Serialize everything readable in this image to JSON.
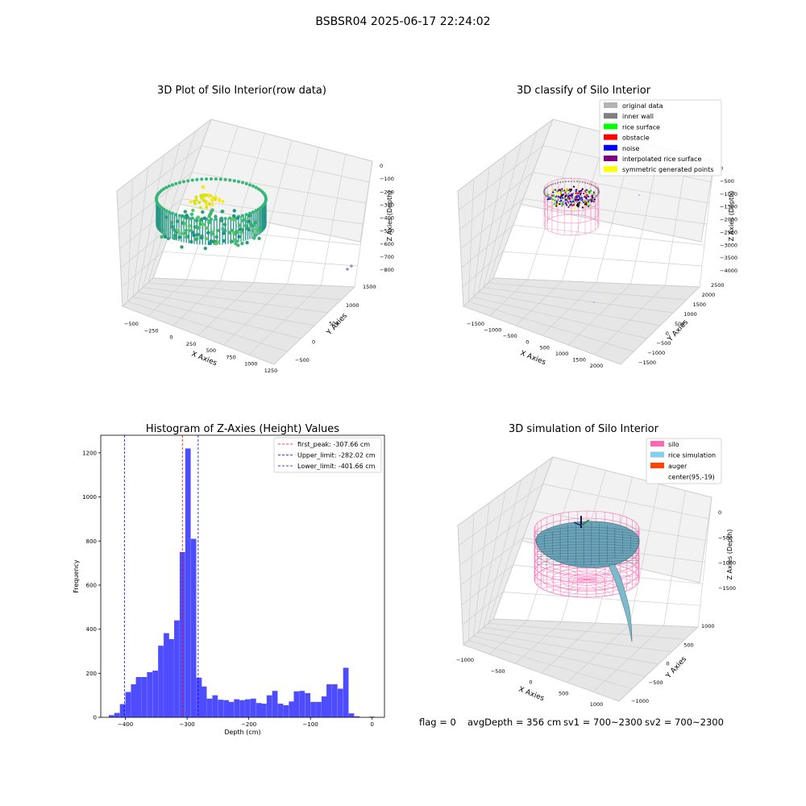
{
  "figure": {
    "suptitle": "BSBSR04 2025-06-17 22:24:02",
    "footer": {
      "flag": "flag = 0",
      "avg_depth": "avgDepth = 356 cm",
      "sv1": "sv1 = 700~2300",
      "sv2": "sv2 = 700~2300"
    }
  },
  "chart_data": [
    {
      "type": "scatter",
      "panel": "3d-raw",
      "title": "3D Plot of Silo Interior(row data)",
      "xlabel": "X Axies",
      "ylabel": "Y Axies",
      "zlabel": "Z Axies (Depth)",
      "x_ticks": [
        "−500",
        "−250",
        "0",
        "250",
        "500",
        "750",
        "1000",
        "1250"
      ],
      "y_ticks": [
        "−500",
        "0",
        "500",
        "1000",
        "1500"
      ],
      "z_ticks": [
        "0",
        "−100",
        "−200",
        "−300",
        "−400",
        "−500",
        "−600",
        "−700",
        "−800"
      ],
      "colormap": "viridis"
    },
    {
      "type": "scatter",
      "panel": "3d-classify",
      "title": "3D classify of Silo Interior",
      "xlabel": "X Axies",
      "ylabel": "Y Axies",
      "zlabel": "Z Axies (Depth)",
      "x_ticks": [
        "−1500",
        "−1000",
        "−500",
        "0",
        "500",
        "1000",
        "1500",
        "2000"
      ],
      "y_ticks": [
        "−1500",
        "−1000",
        "−500",
        "0",
        "500",
        "1000",
        "1500",
        "2000",
        "2500"
      ],
      "z_ticks": [
        "0",
        "−500",
        "−1000",
        "−1500",
        "−2000",
        "−2500",
        "−3000",
        "−3500",
        "−4000"
      ],
      "legend": [
        {
          "label": "original data",
          "color": "#b3b3b3"
        },
        {
          "label": "inner wall",
          "color": "#808080"
        },
        {
          "label": "rice surface",
          "color": "#00ff00"
        },
        {
          "label": "obstacle",
          "color": "#ff0000"
        },
        {
          "label": "noise",
          "color": "#0000ff"
        },
        {
          "label": "interpolated rice surface",
          "color": "#800080"
        },
        {
          "label": "symmetric generated points",
          "color": "#ffff00"
        }
      ]
    },
    {
      "type": "bar",
      "panel": "histogram",
      "title": "Histogram of Z-Axies (Height) Values",
      "xlabel": "Depth (cm)",
      "ylabel": "Frequency",
      "xlim": [
        -440,
        20
      ],
      "ylim": [
        0,
        1280
      ],
      "x_ticks": [
        -400,
        -300,
        -200,
        -100,
        0
      ],
      "y_ticks": [
        0,
        200,
        400,
        600,
        800,
        1000,
        1200
      ],
      "bar_color": "#4d4dff",
      "bin_width": 8.82,
      "bins": [
        {
          "left": -427,
          "count": 10
        },
        {
          "left": -418,
          "count": 20
        },
        {
          "left": -409,
          "count": 60
        },
        {
          "left": -400,
          "count": 115
        },
        {
          "left": -391,
          "count": 150
        },
        {
          "left": -383,
          "count": 183
        },
        {
          "left": -374,
          "count": 183
        },
        {
          "left": -365,
          "count": 205
        },
        {
          "left": -356,
          "count": 212
        },
        {
          "left": -347,
          "count": 325
        },
        {
          "left": -338,
          "count": 382
        },
        {
          "left": -330,
          "count": 355
        },
        {
          "left": -321,
          "count": 440
        },
        {
          "left": -312,
          "count": 750
        },
        {
          "left": -303,
          "count": 1220
        },
        {
          "left": -294,
          "count": 810
        },
        {
          "left": -285,
          "count": 180
        },
        {
          "left": -277,
          "count": 140
        },
        {
          "left": -268,
          "count": 85
        },
        {
          "left": -259,
          "count": 100
        },
        {
          "left": -250,
          "count": 80
        },
        {
          "left": -241,
          "count": 78
        },
        {
          "left": -233,
          "count": 70
        },
        {
          "left": -224,
          "count": 82
        },
        {
          "left": -215,
          "count": 78
        },
        {
          "left": -206,
          "count": 82
        },
        {
          "left": -197,
          "count": 85
        },
        {
          "left": -188,
          "count": 65
        },
        {
          "left": -180,
          "count": 62
        },
        {
          "left": -171,
          "count": 100
        },
        {
          "left": -162,
          "count": 120
        },
        {
          "left": -153,
          "count": 62
        },
        {
          "left": -144,
          "count": 55
        },
        {
          "left": -135,
          "count": 72
        },
        {
          "left": -127,
          "count": 118
        },
        {
          "left": -118,
          "count": 120
        },
        {
          "left": -109,
          "count": 110
        },
        {
          "left": -100,
          "count": 70
        },
        {
          "left": -91,
          "count": 70
        },
        {
          "left": -82,
          "count": 95
        },
        {
          "left": -74,
          "count": 150
        },
        {
          "left": -65,
          "count": 150
        },
        {
          "left": -56,
          "count": 130
        },
        {
          "left": -47,
          "count": 225
        },
        {
          "left": -38,
          "count": 18
        },
        {
          "left": -29,
          "count": 5
        },
        {
          "left": -20,
          "count": 0
        },
        {
          "left": -11,
          "count": 0
        },
        {
          "left": -5,
          "count": 3
        }
      ],
      "lines": [
        {
          "label": "first_peak: -307.66 cm",
          "x": -307.66,
          "color": "#ff0000"
        },
        {
          "label": "Upper_limit: -282.02 cm",
          "x": -282.02,
          "color": "#0000ff"
        },
        {
          "label": "Lower_limit: -401.66 cm",
          "x": -401.66,
          "color": "#0000ff"
        }
      ]
    },
    {
      "type": "surface",
      "panel": "3d-simulation",
      "title": "3D simulation of Silo Interior",
      "xlabel": "X Axies",
      "ylabel": "Y Axies",
      "zlabel": "Z Axies (Depth)",
      "x_ticks": [
        "−1000",
        "−500",
        "0",
        "500",
        "1000"
      ],
      "y_ticks": [
        "−1000",
        "−500",
        "0",
        "500",
        "1000"
      ],
      "z_ticks": [
        "0",
        "−500",
        "−1000",
        "−1500"
      ],
      "legend": [
        {
          "label": "silo",
          "color": "#ff69b4"
        },
        {
          "label": "rice simulation",
          "color": "#87ceeb"
        },
        {
          "label": "auger",
          "color": "#ff4500"
        },
        {
          "label": "center(95,-19)",
          "color": "#ffffff"
        }
      ]
    }
  ]
}
